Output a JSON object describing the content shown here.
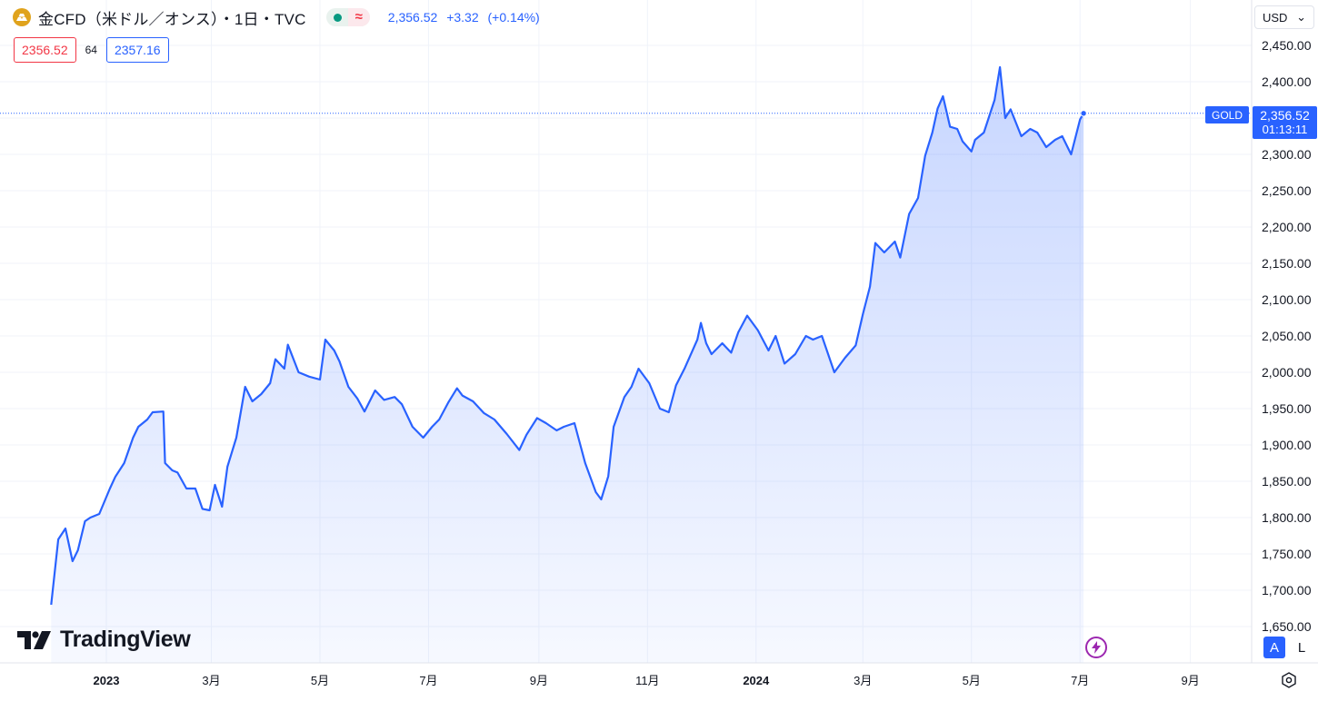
{
  "header": {
    "title": "金CFD（米ドル／オンス）・1日・TVC",
    "last": "2,356.52",
    "change": "+3.32",
    "change_pct": "(+0.14%)",
    "market_status_icon": "market-open-dot-icon",
    "wave_icon_glyph": "≈"
  },
  "trade": {
    "sell": "2356.52",
    "spread": "64",
    "buy": "2357.16"
  },
  "currency_select": {
    "value": "USD",
    "arrow": "⌄"
  },
  "price_tags": {
    "symbol": "GOLD",
    "last": "2,356.52",
    "countdown": "01:13:11"
  },
  "scale_buttons": {
    "auto": "A",
    "log": "L"
  },
  "brand": {
    "name": "TradingView"
  },
  "colors": {
    "line": "#2962ff",
    "accent": "#2962ff",
    "down": "#f23645",
    "up": "#089981",
    "grid": "#f0f3fa"
  },
  "chart_data": {
    "type": "area",
    "series": [
      {
        "x": [
          "2022-12-01",
          "2022-12-05",
          "2022-12-09",
          "2022-12-13",
          "2022-12-16",
          "2022-12-20",
          "2022-12-23",
          "2022-12-28",
          "2023-01-03",
          "2023-01-06",
          "2023-01-11",
          "2023-01-16",
          "2023-01-19",
          "2023-01-24",
          "2023-01-27",
          "2023-02-02",
          "2023-02-03",
          "2023-02-07",
          "2023-02-10",
          "2023-02-15",
          "2023-02-20",
          "2023-02-24",
          "2023-02-28",
          "2023-03-03",
          "2023-03-07",
          "2023-03-10",
          "2023-03-15",
          "2023-03-20",
          "2023-03-24",
          "2023-03-29",
          "2023-04-03",
          "2023-04-06",
          "2023-04-11",
          "2023-04-13",
          "2023-04-19",
          "2023-04-25",
          "2023-05-01",
          "2023-05-04",
          "2023-05-09",
          "2023-05-12",
          "2023-05-17",
          "2023-05-22",
          "2023-05-26",
          "2023-06-01",
          "2023-06-06",
          "2023-06-12",
          "2023-06-16",
          "2023-06-22",
          "2023-06-28",
          "2023-07-03",
          "2023-07-07",
          "2023-07-12",
          "2023-07-17",
          "2023-07-20",
          "2023-07-26",
          "2023-08-01",
          "2023-08-07",
          "2023-08-14",
          "2023-08-21",
          "2023-08-25",
          "2023-08-31",
          "2023-09-05",
          "2023-09-11",
          "2023-09-15",
          "2023-09-21",
          "2023-09-27",
          "2023-10-03",
          "2023-10-06",
          "2023-10-10",
          "2023-10-13",
          "2023-10-19",
          "2023-10-23",
          "2023-10-27",
          "2023-11-02",
          "2023-11-08",
          "2023-11-13",
          "2023-11-17",
          "2023-11-22",
          "2023-11-29",
          "2023-12-01",
          "2023-12-04",
          "2023-12-07",
          "2023-12-13",
          "2023-12-18",
          "2023-12-22",
          "2023-12-27",
          "2024-01-02",
          "2024-01-08",
          "2024-01-12",
          "2024-01-17",
          "2024-01-23",
          "2024-01-29",
          "2024-02-02",
          "2024-02-07",
          "2024-02-14",
          "2024-02-20",
          "2024-02-26",
          "2024-03-01",
          "2024-03-05",
          "2024-03-08",
          "2024-03-13",
          "2024-03-19",
          "2024-03-22",
          "2024-03-27",
          "2024-04-01",
          "2024-04-05",
          "2024-04-09",
          "2024-04-12",
          "2024-04-15",
          "2024-04-19",
          "2024-04-23",
          "2024-04-26",
          "2024-05-01",
          "2024-05-03",
          "2024-05-08",
          "2024-05-14",
          "2024-05-17",
          "2024-05-20",
          "2024-05-23",
          "2024-05-29",
          "2024-06-03",
          "2024-06-07",
          "2024-06-12",
          "2024-06-17",
          "2024-06-21",
          "2024-06-26",
          "2024-07-01",
          "2024-07-03"
        ],
        "y": [
          1680,
          1770,
          1785,
          1740,
          1755,
          1795,
          1800,
          1805,
          1840,
          1856,
          1875,
          1910,
          1925,
          1935,
          1945,
          1946,
          1875,
          1865,
          1862,
          1840,
          1840,
          1812,
          1810,
          1845,
          1815,
          1870,
          1910,
          1980,
          1960,
          1970,
          1985,
          2018,
          2005,
          2038,
          2000,
          1994,
          1990,
          2045,
          2030,
          2015,
          1980,
          1964,
          1946,
          1975,
          1962,
          1966,
          1956,
          1925,
          1910,
          1925,
          1935,
          1958,
          1978,
          1968,
          1960,
          1944,
          1935,
          1915,
          1893,
          1914,
          1937,
          1930,
          1920,
          1925,
          1930,
          1875,
          1835,
          1825,
          1857,
          1925,
          1966,
          1980,
          2005,
          1985,
          1950,
          1945,
          1982,
          2006,
          2045,
          2068,
          2040,
          2025,
          2040,
          2027,
          2055,
          2078,
          2058,
          2030,
          2050,
          2012,
          2025,
          2050,
          2045,
          2050,
          2000,
          2020,
          2037,
          2080,
          2118,
          2178,
          2165,
          2180,
          2158,
          2218,
          2240,
          2298,
          2330,
          2363,
          2380,
          2338,
          2335,
          2318,
          2304,
          2320,
          2330,
          2375,
          2420,
          2350,
          2362,
          2325,
          2335,
          2330,
          2310,
          2320,
          2325,
          2300,
          2348,
          2356.52
        ]
      }
    ],
    "x_ticks": [
      "2023",
      "3月",
      "5月",
      "7月",
      "9月",
      "11月",
      "2024",
      "3月",
      "5月",
      "7月",
      "9月"
    ],
    "y_ticks": [
      "1,650.00",
      "1,700.00",
      "1,750.00",
      "1,800.00",
      "1,850.00",
      "1,900.00",
      "1,950.00",
      "2,000.00",
      "2,050.00",
      "2,100.00",
      "2,150.00",
      "2,200.00",
      "2,250.00",
      "2,300.00",
      "2,350.00",
      "2,400.00",
      "2,450.00"
    ],
    "ylim": [
      1650,
      2450
    ],
    "last_value": 2356.52,
    "grid": true,
    "legend": "none"
  }
}
